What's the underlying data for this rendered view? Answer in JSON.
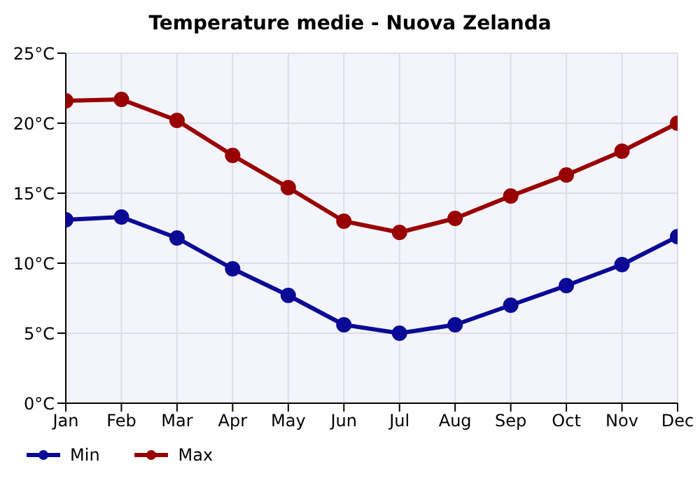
{
  "chart_data": {
    "type": "line",
    "title": "Temperature medie - Nuova Zelanda",
    "categories": [
      "Jan",
      "Feb",
      "Mar",
      "Apr",
      "May",
      "Jun",
      "Jul",
      "Aug",
      "Sep",
      "Oct",
      "Nov",
      "Dec"
    ],
    "series": [
      {
        "name": "Min",
        "color": "#0a0a96",
        "values": [
          13.1,
          13.3,
          11.8,
          9.6,
          7.7,
          5.6,
          5.0,
          5.6,
          7.0,
          8.4,
          9.9,
          11.9
        ]
      },
      {
        "name": "Max",
        "color": "#990000",
        "values": [
          21.6,
          21.7,
          20.2,
          17.7,
          15.4,
          13.0,
          12.2,
          13.2,
          14.8,
          16.3,
          18.0,
          20.0
        ]
      }
    ],
    "ylim": [
      0,
      25
    ],
    "yticks": [
      {
        "value": 0,
        "label": "0°C"
      },
      {
        "value": 5,
        "label": "5°C"
      },
      {
        "value": 10,
        "label": "10°C"
      },
      {
        "value": 15,
        "label": "15°C"
      },
      {
        "value": 20,
        "label": "20°C"
      },
      {
        "value": 25,
        "label": "25°C"
      }
    ],
    "grid": true,
    "legend": "bottom left",
    "marker": "circle",
    "line_style": "solid"
  }
}
